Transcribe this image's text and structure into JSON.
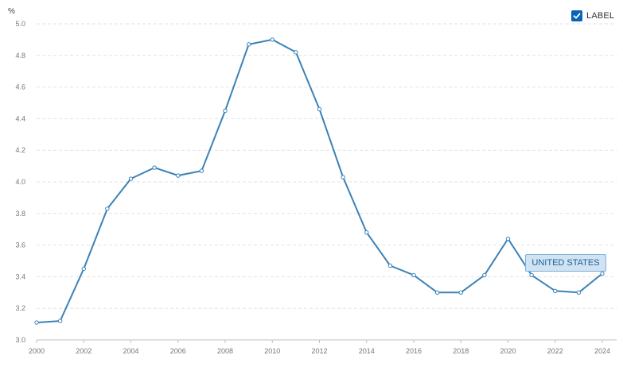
{
  "unit_label": "%",
  "label_toggle": {
    "text": "LABEL",
    "checked": true,
    "icon": "check-icon"
  },
  "series_tag": "UNITED STATES",
  "colors": {
    "line": "#3b82b8",
    "grid": "#e2e2e2",
    "checkbox": "#0b63b3"
  },
  "chart_data": {
    "type": "line",
    "x": [
      2000,
      2001,
      2002,
      2003,
      2004,
      2005,
      2006,
      2007,
      2008,
      2009,
      2010,
      2011,
      2012,
      2013,
      2014,
      2015,
      2016,
      2017,
      2018,
      2019,
      2020,
      2021,
      2022,
      2023,
      2024
    ],
    "series": [
      {
        "name": "UNITED STATES",
        "values": [
          3.11,
          3.12,
          3.45,
          3.83,
          4.02,
          4.09,
          4.04,
          4.07,
          4.45,
          4.87,
          4.9,
          4.82,
          4.46,
          4.03,
          3.68,
          3.47,
          3.41,
          3.3,
          3.3,
          3.41,
          3.64,
          3.41,
          3.31,
          3.3,
          3.42
        ]
      }
    ],
    "yticks": [
      "3.0",
      "3.2",
      "3.4",
      "3.6",
      "3.8",
      "4.0",
      "4.2",
      "4.4",
      "4.6",
      "4.8",
      "5.0"
    ],
    "xticks": [
      "2000",
      "2002",
      "2004",
      "2006",
      "2008",
      "2010",
      "2012",
      "2014",
      "2016",
      "2018",
      "2020",
      "2022",
      "2024"
    ],
    "ylim": [
      3.0,
      5.0
    ],
    "xlim": [
      2000,
      2024
    ],
    "grid": true,
    "ylabel": "%",
    "xlabel": "",
    "title": ""
  }
}
